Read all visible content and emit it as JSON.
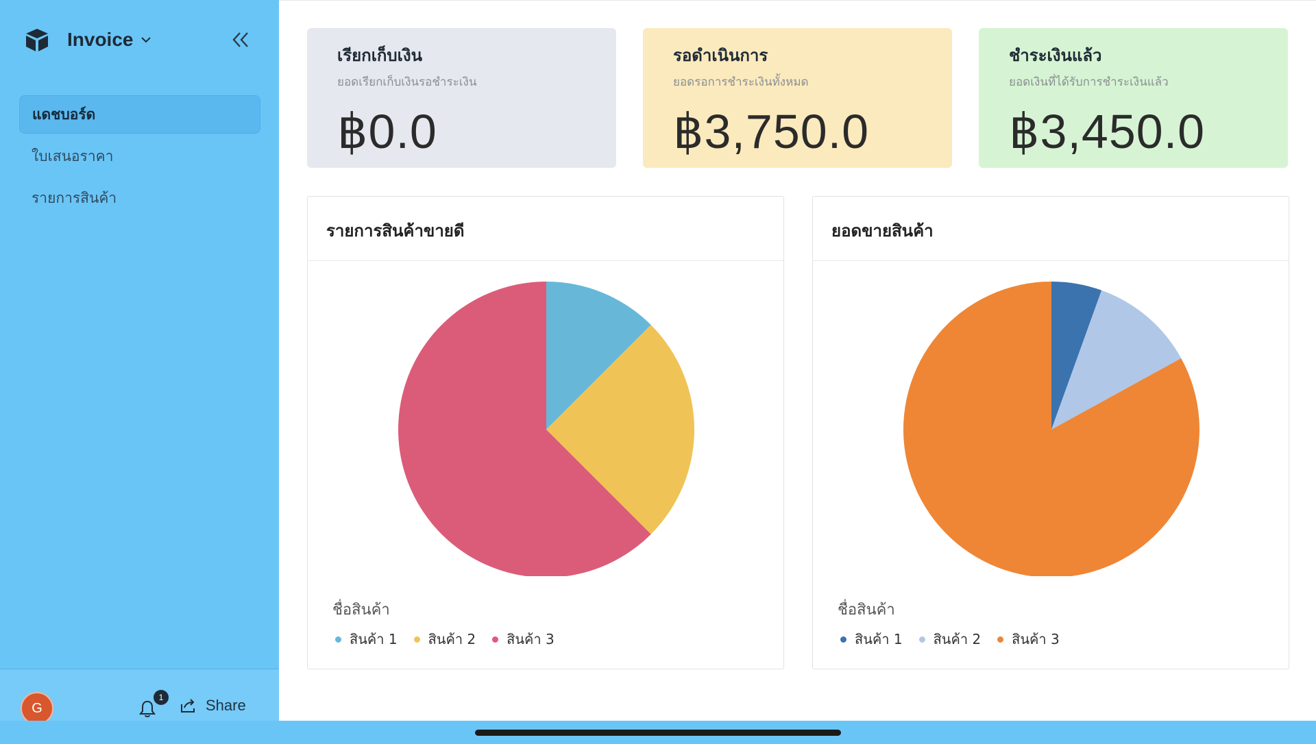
{
  "app": {
    "title": "Invoice",
    "colors": {
      "sidebar": "#6ac5f7",
      "accent": "#5ab8ee"
    }
  },
  "sidebar": {
    "items": [
      {
        "label": "แดชบอร์ด",
        "active": true
      },
      {
        "label": "ใบเสนอราคา",
        "active": false
      },
      {
        "label": "รายการสินค้า",
        "active": false
      }
    ],
    "footer": {
      "avatar_initial": "G",
      "notification_count": "1",
      "share_label": "Share"
    }
  },
  "stats": [
    {
      "title": "เรียกเก็บเงิน",
      "subtitle": "ยอดเรียกเก็บเงินรอชำระเงิน",
      "value": "฿0.0",
      "color": "#e6e8ef"
    },
    {
      "title": "รอดำเนินการ",
      "subtitle": "ยอดรอการชำระเงินทั้งหมด",
      "value": "฿3,750.0",
      "color": "#fbeabd"
    },
    {
      "title": "ชำระเงินแล้ว",
      "subtitle": "ยอดเงินที่ได้รับการชำระเงินแล้ว",
      "value": "฿3,450.0",
      "color": "#d6f4d3"
    }
  ],
  "chart_data": [
    {
      "type": "pie",
      "title": "รายการสินค้าขายดี",
      "legend_title": "ชื่อสินค้า",
      "categories": [
        "สินค้า 1",
        "สินค้า 2",
        "สินค้า 3"
      ],
      "values": [
        12.5,
        25,
        62.5
      ],
      "colors": [
        "#67b8d8",
        "#f0c356",
        "#db5c79"
      ]
    },
    {
      "type": "pie",
      "title": "ยอดขายสินค้า",
      "legend_title": "ชื่อสินค้า",
      "categories": [
        "สินค้า 1",
        "สินค้า 2",
        "สินค้า 3"
      ],
      "values": [
        5.5,
        11.5,
        83
      ],
      "colors": [
        "#3a73ae",
        "#b0c7e7",
        "#ee8636"
      ]
    }
  ]
}
